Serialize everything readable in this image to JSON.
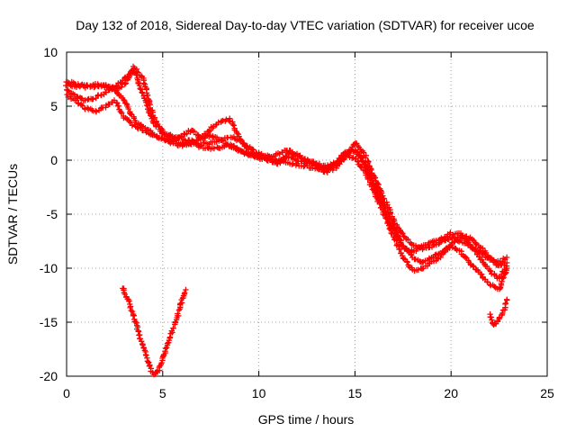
{
  "chart_data": {
    "type": "scatter",
    "title": "Day 132 of 2018, Sidereal Day-to-day VTEC variation (SDTVAR) for receiver ucoe",
    "xlabel": "GPS time / hours",
    "ylabel": "SDTVAR / TECUs",
    "xlim": [
      0,
      25
    ],
    "ylim": [
      -20,
      10
    ],
    "xticks": [
      0,
      5,
      10,
      15,
      20,
      25
    ],
    "yticks": [
      -20,
      -15,
      -10,
      -5,
      0,
      5,
      10
    ],
    "grid": true,
    "marker": "+",
    "color": "#ff0000",
    "series": [
      {
        "name": "track-1",
        "x": [
          0.0,
          0.5,
          1.0,
          1.5,
          2.0,
          2.5,
          3.0,
          3.5,
          4.0,
          4.5,
          5.0,
          5.5,
          6.0,
          6.5,
          7.0,
          7.5,
          8.0,
          8.5,
          9.0,
          9.5,
          10.0,
          10.5,
          11.0,
          11.5,
          12.0,
          12.5,
          13.0,
          13.5,
          14.0,
          14.5,
          15.0,
          15.5,
          16.0,
          16.5,
          17.0,
          17.5,
          18.0,
          18.5,
          19.0,
          19.5,
          20.0,
          20.5,
          21.0,
          21.5,
          22.0,
          22.5,
          22.9
        ],
        "y": [
          7.0,
          6.8,
          7.0,
          6.8,
          7.0,
          6.5,
          5.5,
          3.8,
          3.0,
          2.5,
          2.0,
          1.8,
          1.6,
          1.5,
          1.5,
          1.6,
          1.8,
          2.2,
          1.8,
          1.2,
          0.6,
          0.3,
          0.0,
          -0.2,
          -0.4,
          -0.6,
          -0.8,
          -1.1,
          -0.7,
          0.3,
          1.6,
          0.5,
          -1.5,
          -3.5,
          -5.5,
          -7.0,
          -7.8,
          -8.2,
          -8.0,
          -7.6,
          -7.2,
          -7.5,
          -8.0,
          -8.5,
          -9.2,
          -9.8,
          -9.5
        ]
      },
      {
        "name": "track-2",
        "x": [
          0.0,
          0.5,
          1.0,
          1.5,
          2.0,
          2.5,
          3.0,
          3.5,
          4.0,
          4.5,
          5.0,
          5.5,
          6.0,
          6.5,
          7.0,
          7.5,
          8.0,
          8.5,
          9.0,
          9.5,
          10.0,
          10.5,
          11.0,
          11.5,
          12.0,
          12.5,
          13.0,
          13.5,
          14.0,
          14.5,
          15.0,
          15.5,
          16.0,
          16.5,
          17.0,
          17.5,
          18.0,
          18.5,
          19.0,
          19.5,
          20.0,
          20.5,
          21.0,
          21.5,
          22.0,
          22.5,
          22.9
        ],
        "y": [
          6.5,
          6.0,
          5.5,
          5.8,
          6.2,
          6.8,
          7.5,
          8.3,
          6.0,
          3.5,
          2.5,
          2.2,
          2.0,
          1.8,
          1.2,
          1.0,
          1.2,
          1.5,
          1.0,
          0.5,
          0.3,
          0.1,
          -0.1,
          0.3,
          0.0,
          -0.3,
          -0.5,
          -0.9,
          -0.5,
          0.5,
          1.0,
          -0.3,
          -2.2,
          -4.0,
          -6.0,
          -8.0,
          -9.0,
          -9.5,
          -9.0,
          -8.5,
          -8.0,
          -8.5,
          -9.5,
          -10.5,
          -11.5,
          -12.0,
          -10.0
        ]
      },
      {
        "name": "track-3",
        "x": [
          0.0,
          0.5,
          1.0,
          1.5,
          2.0,
          2.5,
          3.0,
          3.5,
          4.0,
          4.5,
          5.0,
          5.5,
          6.0,
          6.5,
          7.0,
          7.5,
          8.0,
          8.5,
          9.0,
          9.5,
          10.0,
          10.5,
          11.0,
          11.5,
          12.0,
          12.5,
          13.0,
          13.5,
          14.0,
          14.5,
          15.0,
          15.5,
          16.0,
          16.5,
          17.0,
          17.5,
          18.0,
          18.5,
          19.0,
          19.5,
          20.0,
          20.5,
          21.0,
          21.5,
          22.0,
          22.5,
          22.9
        ],
        "y": [
          6.0,
          5.5,
          4.8,
          4.5,
          5.0,
          5.5,
          4.0,
          3.2,
          2.8,
          2.3,
          2.0,
          1.6,
          1.3,
          1.6,
          2.0,
          2.3,
          1.9,
          1.3,
          0.8,
          0.5,
          0.2,
          0.0,
          -0.3,
          0.6,
          0.5,
          0.0,
          -0.3,
          -0.6,
          -0.2,
          0.5,
          0.2,
          -1.0,
          -3.0,
          -5.0,
          -7.0,
          -9.0,
          -10.2,
          -10.0,
          -9.5,
          -8.8,
          -7.8,
          -7.0,
          -7.2,
          -8.0,
          -9.0,
          -9.5,
          -9.0
        ]
      },
      {
        "name": "track-4",
        "x": [
          0.0,
          0.5,
          1.0,
          1.5,
          2.0,
          2.5,
          3.0,
          3.5,
          4.0,
          4.5,
          5.0,
          5.5,
          6.0,
          6.5,
          7.0,
          7.5,
          8.0,
          8.5,
          9.0,
          9.5,
          10.0,
          10.5,
          11.0,
          11.5,
          12.0,
          12.5,
          13.0,
          13.5,
          14.0,
          14.5,
          15.0,
          15.5,
          16.0,
          16.5,
          17.0,
          17.5,
          18.0,
          18.5,
          19.0,
          19.5,
          20.0,
          20.5,
          21.0,
          21.5,
          22.0,
          22.5,
          22.9
        ],
        "y": [
          7.3,
          7.0,
          6.8,
          7.0,
          6.8,
          6.6,
          7.0,
          8.6,
          7.5,
          4.0,
          2.6,
          2.0,
          2.3,
          2.8,
          2.0,
          3.0,
          3.5,
          3.8,
          2.0,
          0.8,
          0.4,
          0.2,
          0.6,
          1.0,
          0.4,
          -0.1,
          -0.5,
          -0.8,
          -0.3,
          0.8,
          0.9,
          -0.2,
          -2.5,
          -4.5,
          -6.5,
          -8.0,
          -8.5,
          -8.0,
          -7.6,
          -7.3,
          -6.8,
          -6.8,
          -7.8,
          -9.0,
          -10.2,
          -11.0,
          -9.8
        ]
      },
      {
        "name": "track-5",
        "x": [
          22.0,
          22.2,
          22.4,
          22.6,
          22.8,
          22.9
        ],
        "y": [
          -14.3,
          -15.3,
          -15.0,
          -14.4,
          -13.6,
          -12.9
        ]
      },
      {
        "name": "track-6",
        "x": [
          2.9,
          3.2,
          3.5,
          3.8,
          4.1,
          4.4,
          4.6,
          4.8,
          5.1,
          5.4,
          5.7,
          6.0,
          6.2
        ],
        "y": [
          -11.8,
          -13.0,
          -14.5,
          -16.3,
          -18.0,
          -19.5,
          -19.9,
          -19.4,
          -17.8,
          -16.3,
          -14.8,
          -13.0,
          -12.0
        ]
      }
    ]
  }
}
